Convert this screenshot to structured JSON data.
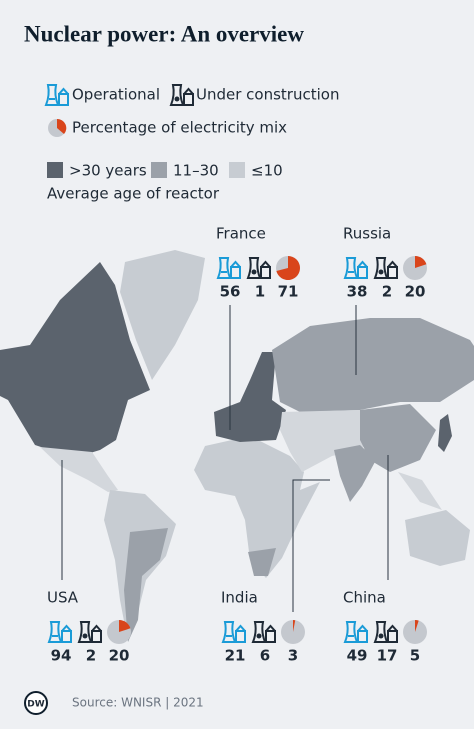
{
  "title": "Nuclear power: An overview",
  "legend": {
    "operational": "Operational",
    "under_construction": "Under construction",
    "percentage": "Percentage of electricity mix",
    "age_classes": [
      ">30 years",
      "11–30",
      "≤10"
    ],
    "age_label": "Average age of reactor"
  },
  "countries": [
    {
      "name": "France",
      "operational": 56,
      "under_construction": 1,
      "electricity_share": 71
    },
    {
      "name": "Russia",
      "operational": 38,
      "under_construction": 2,
      "electricity_share": 20
    },
    {
      "name": "USA",
      "operational": 94,
      "under_construction": 2,
      "electricity_share": 20
    },
    {
      "name": "India",
      "operational": 21,
      "under_construction": 6,
      "electricity_share": 3
    },
    {
      "name": "China",
      "operational": 49,
      "under_construction": 17,
      "electricity_share": 5
    }
  ],
  "footer": {
    "logo": "DW",
    "source": "Source: WNISR | 2021"
  }
}
